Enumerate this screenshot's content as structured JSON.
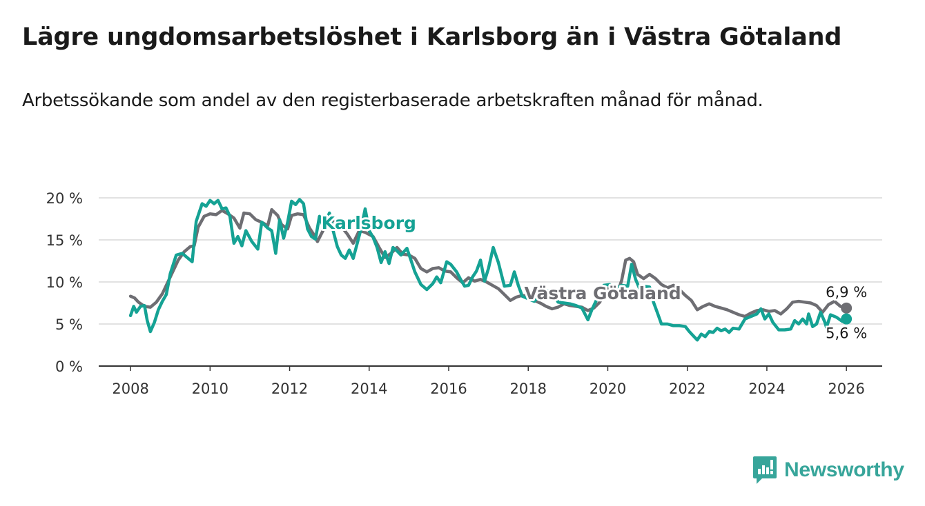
{
  "header": {
    "title": "Lägre ungdomsarbetslöshet i Karlsborg än i Västra Götaland",
    "subtitle": "Arbetssökande som andel av den registerbaserade arbetskraften månad för månad."
  },
  "brand": {
    "name": "Newsworthy",
    "color": "#37a59a"
  },
  "chart_data": {
    "type": "line",
    "title": "Lägre ungdomsarbetslöshet i Karlsborg än i Västra Götaland",
    "subtitle": "Arbetssökande som andel av den registerbaserade arbetskraften månad för månad.",
    "xlabel": "",
    "ylabel": "",
    "xlim": [
      2007.2,
      2026.9
    ],
    "ylim": [
      0,
      20
    ],
    "grid": true,
    "x_ticks": [
      {
        "value": 2008,
        "label": "2008"
      },
      {
        "value": 2010,
        "label": "2010"
      },
      {
        "value": 2012,
        "label": "2012"
      },
      {
        "value": 2014,
        "label": "2014"
      },
      {
        "value": 2016,
        "label": "2016"
      },
      {
        "value": 2018,
        "label": "2018"
      },
      {
        "value": 2020,
        "label": "2020"
      },
      {
        "value": 2022,
        "label": "2022"
      },
      {
        "value": 2024,
        "label": "2024"
      },
      {
        "value": 2026,
        "label": "2026"
      }
    ],
    "y_ticks": [
      {
        "value": 0,
        "label": "0 %"
      },
      {
        "value": 5,
        "label": "5 %"
      },
      {
        "value": 10,
        "label": "10 %"
      },
      {
        "value": 15,
        "label": "15 %"
      },
      {
        "value": 20,
        "label": "20 %"
      }
    ],
    "series": [
      {
        "name": "Västra Götaland",
        "label": "Västra Götaland",
        "color": "#6e6e73",
        "end_label": "6,9 %",
        "end_marker": true,
        "points": [
          [
            2008.0,
            8.3
          ],
          [
            2008.1,
            8.1
          ],
          [
            2008.2,
            7.6
          ],
          [
            2008.35,
            7.1
          ],
          [
            2008.5,
            7.0
          ],
          [
            2008.65,
            7.6
          ],
          [
            2008.8,
            8.6
          ],
          [
            2009.0,
            10.6
          ],
          [
            2009.2,
            12.6
          ],
          [
            2009.35,
            13.6
          ],
          [
            2009.5,
            14.2
          ],
          [
            2009.6,
            14.3
          ],
          [
            2009.7,
            16.5
          ],
          [
            2009.85,
            17.8
          ],
          [
            2010.0,
            18.1
          ],
          [
            2010.15,
            18.0
          ],
          [
            2010.3,
            18.5
          ],
          [
            2010.45,
            18.1
          ],
          [
            2010.6,
            17.6
          ],
          [
            2010.75,
            16.4
          ],
          [
            2010.85,
            18.2
          ],
          [
            2011.0,
            18.1
          ],
          [
            2011.15,
            17.4
          ],
          [
            2011.3,
            17.1
          ],
          [
            2011.45,
            16.7
          ],
          [
            2011.55,
            18.6
          ],
          [
            2011.7,
            17.9
          ],
          [
            2011.8,
            16.8
          ],
          [
            2011.95,
            16.3
          ],
          [
            2012.05,
            17.9
          ],
          [
            2012.2,
            18.1
          ],
          [
            2012.35,
            18.0
          ],
          [
            2012.5,
            16.4
          ],
          [
            2012.6,
            15.7
          ],
          [
            2012.7,
            14.8
          ],
          [
            2012.85,
            16.2
          ],
          [
            2013.0,
            16.9
          ],
          [
            2013.15,
            17.5
          ],
          [
            2013.3,
            16.6
          ],
          [
            2013.45,
            15.7
          ],
          [
            2013.6,
            14.6
          ],
          [
            2013.75,
            16.1
          ],
          [
            2013.9,
            15.9
          ],
          [
            2014.1,
            15.4
          ],
          [
            2014.25,
            14.1
          ],
          [
            2014.4,
            12.9
          ],
          [
            2014.55,
            13.4
          ],
          [
            2014.7,
            14.1
          ],
          [
            2014.85,
            13.3
          ],
          [
            2015.0,
            13.2
          ],
          [
            2015.15,
            12.8
          ],
          [
            2015.3,
            11.6
          ],
          [
            2015.45,
            11.2
          ],
          [
            2015.6,
            11.6
          ],
          [
            2015.75,
            11.7
          ],
          [
            2015.9,
            11.3
          ],
          [
            2016.05,
            11.2
          ],
          [
            2016.2,
            10.5
          ],
          [
            2016.35,
            9.9
          ],
          [
            2016.5,
            10.5
          ],
          [
            2016.65,
            10.1
          ],
          [
            2016.8,
            10.3
          ],
          [
            2016.95,
            10.0
          ],
          [
            2017.1,
            9.6
          ],
          [
            2017.25,
            9.2
          ],
          [
            2017.4,
            8.5
          ],
          [
            2017.55,
            7.8
          ],
          [
            2017.7,
            8.2
          ],
          [
            2017.85,
            8.4
          ],
          [
            2018.0,
            8.3
          ],
          [
            2018.15,
            7.8
          ],
          [
            2018.3,
            7.5
          ],
          [
            2018.45,
            7.1
          ],
          [
            2018.6,
            6.8
          ],
          [
            2018.75,
            7.0
          ],
          [
            2018.9,
            7.4
          ],
          [
            2019.05,
            7.2
          ],
          [
            2019.2,
            7.1
          ],
          [
            2019.35,
            7.0
          ],
          [
            2019.5,
            6.6
          ],
          [
            2019.65,
            6.9
          ],
          [
            2019.8,
            7.6
          ],
          [
            2019.95,
            9.1
          ],
          [
            2020.1,
            9.4
          ],
          [
            2020.25,
            8.8
          ],
          [
            2020.35,
            10.2
          ],
          [
            2020.45,
            12.6
          ],
          [
            2020.55,
            12.8
          ],
          [
            2020.65,
            12.4
          ],
          [
            2020.75,
            10.9
          ],
          [
            2020.9,
            10.4
          ],
          [
            2021.05,
            10.9
          ],
          [
            2021.2,
            10.4
          ],
          [
            2021.35,
            9.7
          ],
          [
            2021.5,
            9.3
          ],
          [
            2021.65,
            9.6
          ],
          [
            2021.8,
            9.1
          ],
          [
            2021.95,
            8.4
          ],
          [
            2022.1,
            7.8
          ],
          [
            2022.25,
            6.7
          ],
          [
            2022.4,
            7.1
          ],
          [
            2022.55,
            7.4
          ],
          [
            2022.7,
            7.1
          ],
          [
            2022.85,
            6.9
          ],
          [
            2023.0,
            6.7
          ],
          [
            2023.15,
            6.4
          ],
          [
            2023.3,
            6.1
          ],
          [
            2023.45,
            5.9
          ],
          [
            2023.6,
            6.3
          ],
          [
            2023.75,
            6.6
          ],
          [
            2023.9,
            6.7
          ],
          [
            2024.05,
            6.5
          ],
          [
            2024.2,
            6.6
          ],
          [
            2024.35,
            6.2
          ],
          [
            2024.5,
            6.8
          ],
          [
            2024.65,
            7.6
          ],
          [
            2024.8,
            7.7
          ],
          [
            2024.95,
            7.6
          ],
          [
            2025.1,
            7.5
          ],
          [
            2025.25,
            7.2
          ],
          [
            2025.4,
            6.4
          ],
          [
            2025.55,
            7.3
          ],
          [
            2025.7,
            7.7
          ],
          [
            2025.85,
            7.1
          ],
          [
            2026.0,
            6.9
          ]
        ]
      },
      {
        "name": "Karlsborg",
        "label": "Karlsborg",
        "color": "#15a294",
        "end_label": "5,6 %",
        "end_marker": true,
        "points": [
          [
            2008.0,
            6.0
          ],
          [
            2008.08,
            7.1
          ],
          [
            2008.15,
            6.4
          ],
          [
            2008.25,
            7.1
          ],
          [
            2008.35,
            7.2
          ],
          [
            2008.42,
            5.4
          ],
          [
            2008.5,
            4.1
          ],
          [
            2008.6,
            5.2
          ],
          [
            2008.7,
            6.7
          ],
          [
            2008.8,
            7.7
          ],
          [
            2008.9,
            8.5
          ],
          [
            2009.0,
            11.0
          ],
          [
            2009.15,
            13.2
          ],
          [
            2009.3,
            13.4
          ],
          [
            2009.45,
            12.8
          ],
          [
            2009.55,
            12.4
          ],
          [
            2009.65,
            17.2
          ],
          [
            2009.8,
            19.3
          ],
          [
            2009.9,
            19.0
          ],
          [
            2010.0,
            19.7
          ],
          [
            2010.1,
            19.3
          ],
          [
            2010.2,
            19.7
          ],
          [
            2010.3,
            18.7
          ],
          [
            2010.4,
            18.8
          ],
          [
            2010.5,
            17.8
          ],
          [
            2010.6,
            14.6
          ],
          [
            2010.7,
            15.4
          ],
          [
            2010.8,
            14.3
          ],
          [
            2010.9,
            16.1
          ],
          [
            2011.05,
            14.8
          ],
          [
            2011.2,
            13.9
          ],
          [
            2011.3,
            17.1
          ],
          [
            2011.45,
            16.4
          ],
          [
            2011.55,
            16.1
          ],
          [
            2011.65,
            13.4
          ],
          [
            2011.75,
            17.4
          ],
          [
            2011.85,
            15.2
          ],
          [
            2011.95,
            17.1
          ],
          [
            2012.05,
            19.6
          ],
          [
            2012.15,
            19.2
          ],
          [
            2012.25,
            19.8
          ],
          [
            2012.35,
            19.3
          ],
          [
            2012.45,
            16.3
          ],
          [
            2012.55,
            15.4
          ],
          [
            2012.65,
            15.1
          ],
          [
            2012.75,
            17.8
          ],
          [
            2012.85,
            16.5
          ],
          [
            2013.0,
            18.2
          ],
          [
            2013.1,
            16.0
          ],
          [
            2013.2,
            14.2
          ],
          [
            2013.3,
            13.2
          ],
          [
            2013.4,
            12.8
          ],
          [
            2013.5,
            13.8
          ],
          [
            2013.6,
            12.8
          ],
          [
            2013.7,
            14.6
          ],
          [
            2013.8,
            16.4
          ],
          [
            2013.9,
            18.7
          ],
          [
            2014.0,
            16.1
          ],
          [
            2014.1,
            15.3
          ],
          [
            2014.2,
            14.1
          ],
          [
            2014.3,
            12.3
          ],
          [
            2014.4,
            13.6
          ],
          [
            2014.5,
            12.2
          ],
          [
            2014.6,
            14.1
          ],
          [
            2014.7,
            13.7
          ],
          [
            2014.8,
            13.2
          ],
          [
            2014.95,
            14.0
          ],
          [
            2015.05,
            12.6
          ],
          [
            2015.15,
            11.2
          ],
          [
            2015.3,
            9.7
          ],
          [
            2015.45,
            9.1
          ],
          [
            2015.6,
            9.8
          ],
          [
            2015.7,
            10.6
          ],
          [
            2015.8,
            9.9
          ],
          [
            2015.95,
            12.4
          ],
          [
            2016.05,
            12.1
          ],
          [
            2016.2,
            11.2
          ],
          [
            2016.3,
            10.3
          ],
          [
            2016.4,
            9.5
          ],
          [
            2016.5,
            9.6
          ],
          [
            2016.6,
            10.6
          ],
          [
            2016.7,
            11.3
          ],
          [
            2016.8,
            12.6
          ],
          [
            2016.9,
            10.1
          ],
          [
            2017.0,
            11.6
          ],
          [
            2017.12,
            14.1
          ],
          [
            2017.25,
            12.3
          ],
          [
            2017.4,
            9.5
          ],
          [
            2017.55,
            9.6
          ],
          [
            2017.65,
            11.2
          ],
          [
            2017.75,
            9.6
          ],
          [
            2017.85,
            8.3
          ],
          [
            2018.0,
            8.0
          ],
          [
            2018.15,
            7.7
          ],
          [
            2018.3,
            8.4
          ],
          [
            2018.45,
            8.9
          ],
          [
            2018.6,
            9.0
          ],
          [
            2018.75,
            7.6
          ],
          [
            2018.9,
            7.5
          ],
          [
            2019.05,
            7.4
          ],
          [
            2019.2,
            7.2
          ],
          [
            2019.35,
            6.9
          ],
          [
            2019.5,
            5.5
          ],
          [
            2019.6,
            6.7
          ],
          [
            2019.75,
            8.2
          ],
          [
            2019.9,
            9.6
          ],
          [
            2020.05,
            9.7
          ],
          [
            2020.2,
            9.2
          ],
          [
            2020.35,
            9.6
          ],
          [
            2020.5,
            9.5
          ],
          [
            2020.6,
            12.1
          ],
          [
            2020.7,
            10.3
          ],
          [
            2020.8,
            9.2
          ],
          [
            2020.9,
            9.5
          ],
          [
            2021.05,
            9.4
          ],
          [
            2021.15,
            7.6
          ],
          [
            2021.25,
            6.3
          ],
          [
            2021.35,
            5.0
          ],
          [
            2021.5,
            5.0
          ],
          [
            2021.65,
            4.8
          ],
          [
            2021.8,
            4.8
          ],
          [
            2021.95,
            4.7
          ],
          [
            2022.05,
            4.1
          ],
          [
            2022.15,
            3.6
          ],
          [
            2022.25,
            3.1
          ],
          [
            2022.35,
            3.8
          ],
          [
            2022.45,
            3.5
          ],
          [
            2022.55,
            4.1
          ],
          [
            2022.65,
            4.0
          ],
          [
            2022.75,
            4.5
          ],
          [
            2022.85,
            4.2
          ],
          [
            2022.95,
            4.4
          ],
          [
            2023.05,
            4.0
          ],
          [
            2023.15,
            4.5
          ],
          [
            2023.3,
            4.4
          ],
          [
            2023.45,
            5.6
          ],
          [
            2023.6,
            5.9
          ],
          [
            2023.75,
            6.2
          ],
          [
            2023.85,
            6.8
          ],
          [
            2023.95,
            5.6
          ],
          [
            2024.05,
            6.2
          ],
          [
            2024.15,
            5.2
          ],
          [
            2024.3,
            4.3
          ],
          [
            2024.45,
            4.3
          ],
          [
            2024.6,
            4.4
          ],
          [
            2024.7,
            5.4
          ],
          [
            2024.8,
            5.0
          ],
          [
            2024.9,
            5.6
          ],
          [
            2025.0,
            5.0
          ],
          [
            2025.05,
            6.2
          ],
          [
            2025.15,
            4.7
          ],
          [
            2025.25,
            5.0
          ],
          [
            2025.35,
            6.4
          ],
          [
            2025.45,
            5.3
          ],
          [
            2025.5,
            4.6
          ],
          [
            2025.6,
            6.1
          ],
          [
            2025.75,
            5.8
          ],
          [
            2025.9,
            5.3
          ],
          [
            2026.0,
            5.6
          ]
        ]
      }
    ]
  }
}
